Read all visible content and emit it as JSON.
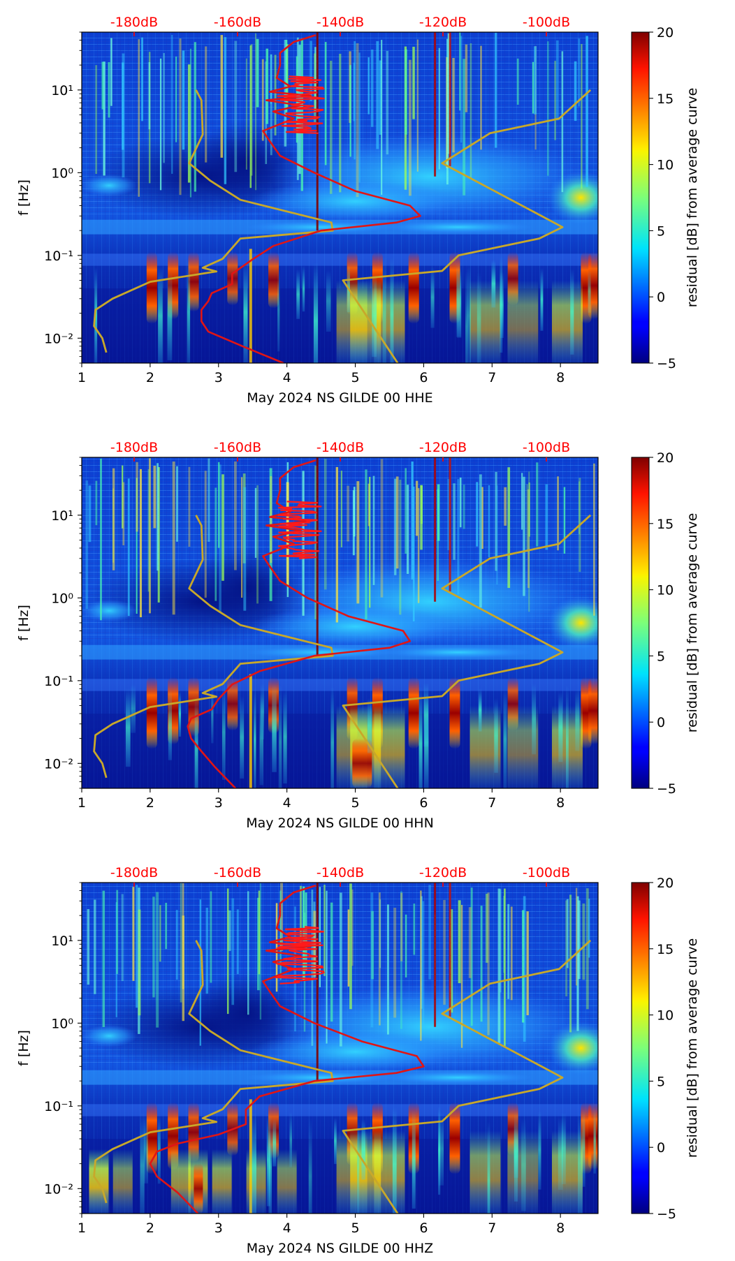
{
  "chart_data": [
    {
      "type": "heatmap",
      "title": "",
      "xlabel": "May 2024 NS GILDE 00 HHE",
      "ylabel": "f [Hz]",
      "colorbar_label": "residual [dB] from average curve",
      "xlim": [
        1,
        8.55
      ],
      "ylim_hz": [
        0.005,
        50
      ],
      "x_ticks": [
        1,
        2,
        3,
        4,
        5,
        6,
        7,
        8
      ],
      "x_tick_labels": [
        "1",
        "2",
        "3",
        "4",
        "5",
        "6",
        "7",
        "8"
      ],
      "y_tick_labels": [
        "10¹",
        "10⁰",
        "10⁻¹",
        "10⁻²"
      ],
      "top_axis_labels": [
        "-180dB",
        "-160dB",
        "-140dB",
        "-120dB",
        "-100dB"
      ],
      "colorbar_range": [
        -5,
        20
      ],
      "colorbar_ticks": [
        "20",
        "15",
        "10",
        "5",
        "0",
        "−5"
      ],
      "series": [
        {
          "name": "model-curve",
          "color": "#c8a82a",
          "x": [
            2.67,
            2.75,
            2.77,
            2.57,
            2.88,
            3.32,
            4.65,
            4.67,
            3.32,
            3.06,
            2.77,
            2.97,
            2.0,
            1.45,
            1.2,
            1.18,
            1.3,
            1.36
          ],
          "y": [
            10,
            7.5,
            2.9,
            1.3,
            0.8,
            0.47,
            0.25,
            0.2,
            0.16,
            0.091,
            0.071,
            0.064,
            0.048,
            0.03,
            0.022,
            0.014,
            0.01,
            0.0067
          ]
        },
        {
          "name": "model-curve",
          "color": "#c8a82a",
          "x": [
            8.44,
            7.98,
            6.97,
            6.27,
            6.35,
            8.03,
            7.69,
            6.51,
            6.27,
            4.82,
            5.62
          ],
          "y": [
            10,
            4.5,
            3.0,
            1.3,
            1.2,
            0.22,
            0.16,
            0.1,
            0.065,
            0.05,
            0.005
          ]
        },
        {
          "name": "average-psd",
          "color": "#e01515",
          "x": [
            4.42,
            4.1,
            3.9,
            3.9,
            3.85,
            4.05,
            3.75,
            4.35,
            3.7,
            4.2,
            3.8,
            4.1,
            3.65,
            3.75,
            3.9,
            4.4,
            5.0,
            5.8,
            5.95,
            5.6,
            4.5,
            3.8,
            3.5,
            3.2,
            3.2,
            2.9,
            2.85,
            2.75,
            2.75,
            2.85,
            3.35,
            3.95
          ],
          "y": [
            46,
            38,
            28,
            20,
            14,
            11,
            9.5,
            8.5,
            7.5,
            6.5,
            5.5,
            4.5,
            3.2,
            2.4,
            1.6,
            1.0,
            0.6,
            0.4,
            0.3,
            0.25,
            0.2,
            0.13,
            0.09,
            0.06,
            0.045,
            0.035,
            0.028,
            0.022,
            0.016,
            0.012,
            0.008,
            0.005
          ]
        }
      ]
    },
    {
      "type": "heatmap",
      "title": "",
      "xlabel": "May 2024 NS GILDE 00 HHN",
      "ylabel": "f [Hz]",
      "colorbar_label": "residual [dB] from average curve",
      "xlim": [
        1,
        8.55
      ],
      "ylim_hz": [
        0.005,
        50
      ],
      "x_ticks": [
        1,
        2,
        3,
        4,
        5,
        6,
        7,
        8
      ],
      "x_tick_labels": [
        "1",
        "2",
        "3",
        "4",
        "5",
        "6",
        "7",
        "8"
      ],
      "y_tick_labels": [
        "10¹",
        "10⁰",
        "10⁻¹",
        "10⁻²"
      ],
      "top_axis_labels": [
        "-180dB",
        "-160dB",
        "-140dB",
        "-120dB",
        "-100dB"
      ],
      "colorbar_range": [
        -5,
        20
      ],
      "colorbar_ticks": [
        "20",
        "15",
        "10",
        "5",
        "0",
        "−5"
      ],
      "series": [
        {
          "name": "model-curve",
          "color": "#c8a82a",
          "x": [
            2.67,
            2.75,
            2.77,
            2.57,
            2.88,
            3.32,
            4.65,
            4.67,
            3.32,
            3.06,
            2.77,
            2.97,
            2.0,
            1.45,
            1.2,
            1.18,
            1.3,
            1.36
          ],
          "y": [
            10,
            7.5,
            2.9,
            1.3,
            0.8,
            0.47,
            0.25,
            0.2,
            0.16,
            0.091,
            0.071,
            0.064,
            0.048,
            0.03,
            0.022,
            0.014,
            0.01,
            0.0067
          ]
        },
        {
          "name": "model-curve",
          "color": "#c8a82a",
          "x": [
            8.44,
            7.98,
            6.97,
            6.27,
            6.35,
            8.03,
            7.69,
            6.51,
            6.27,
            4.82,
            5.62
          ],
          "y": [
            10,
            4.5,
            3.0,
            1.3,
            1.2,
            0.22,
            0.16,
            0.1,
            0.065,
            0.05,
            0.005
          ]
        },
        {
          "name": "average-psd",
          "color": "#e01515",
          "x": [
            4.42,
            4.1,
            3.9,
            3.9,
            3.85,
            4.05,
            3.75,
            4.35,
            3.7,
            4.2,
            3.8,
            4.1,
            3.65,
            3.75,
            3.9,
            4.3,
            4.9,
            5.7,
            5.8,
            5.5,
            4.4,
            3.6,
            3.2,
            3.0,
            2.9,
            2.6,
            2.55,
            2.6,
            2.75,
            2.95,
            3.25
          ],
          "y": [
            46,
            38,
            28,
            20,
            14,
            11,
            9.5,
            8.5,
            7.5,
            6.5,
            5.5,
            4.5,
            3.2,
            2.4,
            1.6,
            1.0,
            0.6,
            0.4,
            0.3,
            0.25,
            0.2,
            0.13,
            0.09,
            0.06,
            0.045,
            0.035,
            0.028,
            0.02,
            0.014,
            0.009,
            0.005
          ]
        }
      ]
    },
    {
      "type": "heatmap",
      "title": "",
      "xlabel": "May 2024 NS GILDE 00 HHZ",
      "ylabel": "f [Hz]",
      "colorbar_label": "residual [dB] from average curve",
      "xlim": [
        1,
        8.55
      ],
      "ylim_hz": [
        0.005,
        50
      ],
      "x_ticks": [
        1,
        2,
        3,
        4,
        5,
        6,
        7,
        8
      ],
      "x_tick_labels": [
        "1",
        "2",
        "3",
        "4",
        "5",
        "6",
        "7",
        "8"
      ],
      "y_tick_labels": [
        "10¹",
        "10⁰",
        "10⁻¹",
        "10⁻²"
      ],
      "top_axis_labels": [
        "-180dB",
        "-160dB",
        "-140dB",
        "-120dB",
        "-100dB"
      ],
      "colorbar_range": [
        -5,
        20
      ],
      "colorbar_ticks": [
        "20",
        "15",
        "10",
        "5",
        "0",
        "−5"
      ],
      "series": [
        {
          "name": "model-curve",
          "color": "#c8a82a",
          "x": [
            2.67,
            2.75,
            2.77,
            2.57,
            2.88,
            3.32,
            4.65,
            4.67,
            3.32,
            3.06,
            2.77,
            2.97,
            2.0,
            1.45,
            1.2,
            1.18,
            1.3,
            1.36
          ],
          "y": [
            10,
            7.5,
            2.9,
            1.3,
            0.8,
            0.47,
            0.25,
            0.2,
            0.16,
            0.091,
            0.071,
            0.064,
            0.048,
            0.03,
            0.022,
            0.014,
            0.01,
            0.0067
          ]
        },
        {
          "name": "model-curve",
          "color": "#c8a82a",
          "x": [
            8.44,
            7.98,
            6.97,
            6.27,
            6.35,
            8.03,
            7.69,
            6.51,
            6.27,
            4.82,
            5.62
          ],
          "y": [
            10,
            4.5,
            3.0,
            1.3,
            1.2,
            0.22,
            0.16,
            0.1,
            0.065,
            0.05,
            0.005
          ]
        },
        {
          "name": "average-psd",
          "color": "#e01515",
          "x": [
            4.42,
            4.1,
            3.9,
            3.9,
            3.85,
            4.05,
            3.75,
            4.35,
            3.7,
            4.2,
            3.8,
            4.1,
            3.65,
            3.75,
            3.9,
            4.4,
            5.1,
            5.9,
            6.0,
            5.6,
            4.4,
            3.6,
            3.4,
            3.4,
            3.0,
            2.4,
            2.1,
            2.0,
            2.1,
            2.4,
            2.7
          ],
          "y": [
            46,
            38,
            28,
            20,
            14,
            11,
            9.5,
            8.5,
            7.5,
            6.5,
            5.5,
            4.5,
            3.2,
            2.4,
            1.6,
            1.0,
            0.6,
            0.4,
            0.3,
            0.25,
            0.2,
            0.13,
            0.09,
            0.06,
            0.045,
            0.035,
            0.028,
            0.02,
            0.014,
            0.009,
            0.005
          ]
        }
      ]
    }
  ]
}
